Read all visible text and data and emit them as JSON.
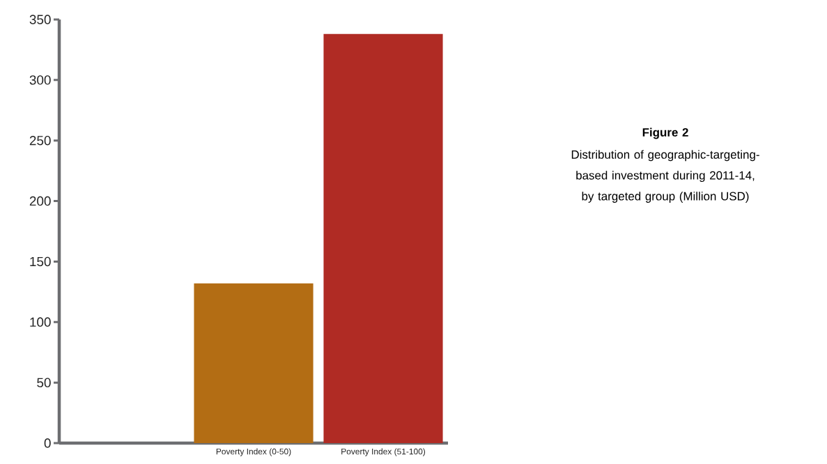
{
  "chart_data": {
    "type": "bar",
    "title": "Figure 2",
    "subtitle": "Distribution of geographic-targeting-based investment during 2011-14, by targeted group (Million USD)",
    "categories": [
      null,
      "Poverty Index (0-50)",
      "Poverty Index (51-100)"
    ],
    "values": [
      null,
      132,
      338
    ],
    "colors": [
      "#b36d14",
      "#b36d14",
      "#b02b24"
    ],
    "ylim": [
      0,
      350
    ],
    "yticks": [
      0,
      50,
      100,
      150,
      200,
      250,
      300,
      350
    ]
  }
}
